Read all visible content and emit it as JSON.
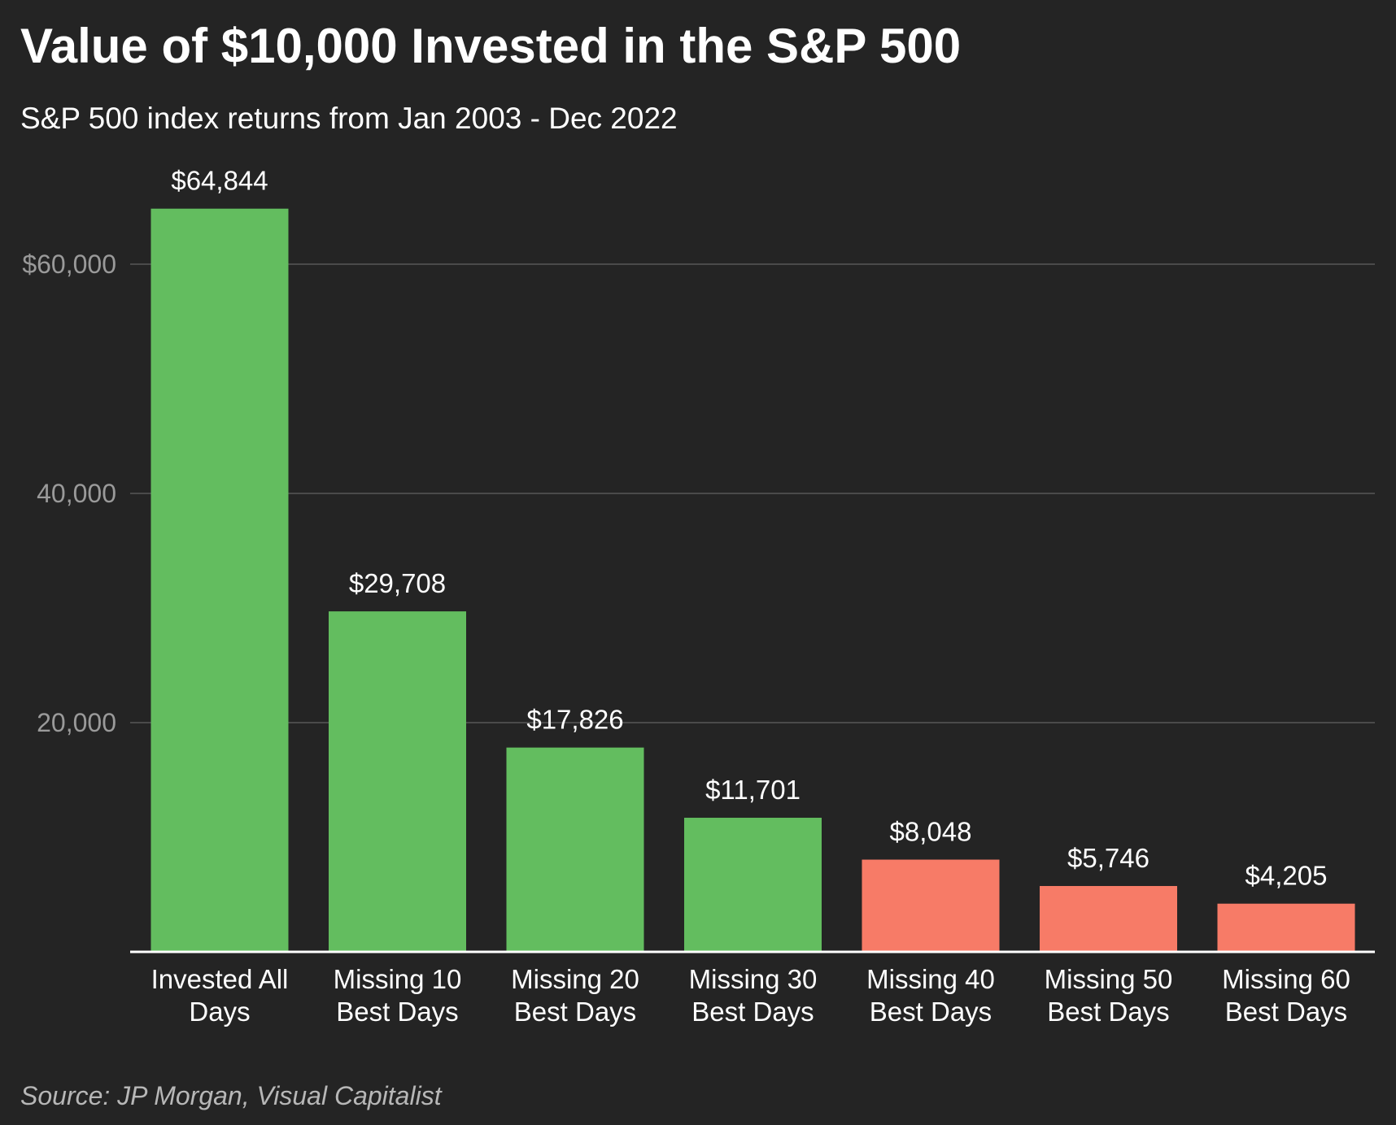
{
  "title": "Value of $10,000 Invested in the S&P 500",
  "subtitle": "S&P 500 index returns from Jan 2003 - Dec 2022",
  "source": "Source: JP Morgan, Visual Capitalist",
  "chart_data": {
    "type": "bar",
    "title": "Value of $10,000 Invested in the S&P 500",
    "subtitle": "S&P 500 index returns from Jan 2003 - Dec 2022",
    "xlabel": "",
    "ylabel": "",
    "ylim": [
      0,
      70000
    ],
    "grid": true,
    "y_ticks": [
      {
        "value": 20000,
        "label": "20,000"
      },
      {
        "value": 40000,
        "label": "40,000"
      },
      {
        "value": 60000,
        "label": "$60,000"
      }
    ],
    "categories": [
      [
        "Invested All",
        "Days"
      ],
      [
        "Missing 10",
        "Best Days"
      ],
      [
        "Missing 20",
        "Best Days"
      ],
      [
        "Missing 30",
        "Best Days"
      ],
      [
        "Missing 40",
        "Best Days"
      ],
      [
        "Missing 50",
        "Best Days"
      ],
      [
        "Missing 60",
        "Best Days"
      ]
    ],
    "values": [
      64844,
      29708,
      17826,
      11701,
      8048,
      5746,
      4205
    ],
    "value_labels": [
      "$64,844",
      "$29,708",
      "$17,826",
      "$11,701",
      "$8,048",
      "$5,746",
      "$4,205"
    ],
    "colors": [
      "#63bd5f",
      "#63bd5f",
      "#63bd5f",
      "#63bd5f",
      "#f77b67",
      "#f77b67",
      "#f77b67"
    ],
    "gridline_color": "#4a4a4a",
    "axis_color": "#ffffff"
  }
}
